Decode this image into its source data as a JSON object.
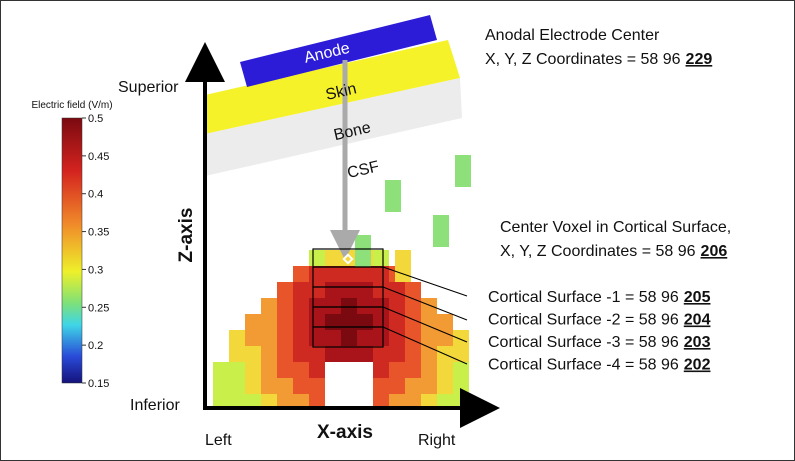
{
  "colorbar": {
    "title": "Electric field (V/m)",
    "ticks": [
      0.5,
      0.45,
      0.4,
      0.35,
      0.3,
      0.25,
      0.2,
      0.15
    ]
  },
  "layers": [
    "Anode",
    "Skin",
    "Bone",
    "CSF"
  ],
  "axes": {
    "top": "Superior",
    "bottom": "Inferior",
    "z_label": "Z-axis",
    "x_label": "X-axis",
    "left": "Left",
    "right": "Right"
  },
  "anode_center": {
    "title": "Anodal Electrode Center",
    "coords_label": "X, Y, Z Coordinates = 58 96",
    "z": "229"
  },
  "center_voxel": {
    "title": "Center Voxel in Cortical Surface,",
    "coords_label": "X, Y, Z Coordinates = 58 96",
    "z": "206"
  },
  "cortical_surfaces": [
    {
      "label": "Cortical Surface -1 = 58 96",
      "z": "205"
    },
    {
      "label": "Cortical Surface -2 = 58 96",
      "z": "204"
    },
    {
      "label": "Cortical Surface -3 = 58 96",
      "z": "203"
    },
    {
      "label": "Cortical Surface -4 = 58 96",
      "z": "202"
    }
  ]
}
